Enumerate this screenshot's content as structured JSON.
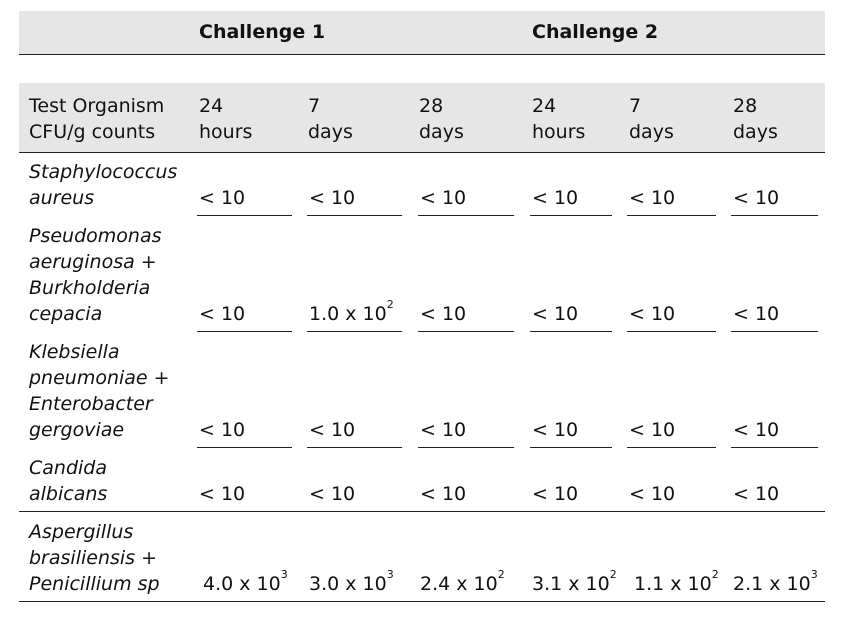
{
  "challenges": [
    "Challenge 1",
    "Challenge 2"
  ],
  "header": {
    "first_col": [
      "Test Organism",
      "CFU/g counts"
    ],
    "times": [
      [
        "24",
        "hours"
      ],
      [
        "7",
        "days"
      ],
      [
        "28",
        "days"
      ],
      [
        "24",
        "hours"
      ],
      [
        "7",
        "days"
      ],
      [
        "28",
        "days"
      ]
    ]
  },
  "rows": [
    {
      "organism": [
        "Staphylococcus",
        "aureus"
      ],
      "values": [
        [
          "< 10",
          ""
        ],
        [
          "< 10",
          ""
        ],
        [
          "< 10",
          ""
        ],
        [
          "< 10",
          ""
        ],
        [
          "< 10",
          ""
        ],
        [
          "< 10",
          ""
        ]
      ]
    },
    {
      "organism": [
        "Pseudomonas",
        "aeruginosa +",
        "Burkholderia",
        "cepacia"
      ],
      "values": [
        [
          "< 10",
          ""
        ],
        [
          "1.0 x 10",
          "2"
        ],
        [
          "< 10",
          ""
        ],
        [
          "< 10",
          ""
        ],
        [
          "< 10",
          ""
        ],
        [
          "< 10",
          ""
        ]
      ]
    },
    {
      "organism": [
        "Klebsiella",
        "pneumoniae +",
        "Enterobacter",
        "gergoviae"
      ],
      "values": [
        [
          "< 10",
          ""
        ],
        [
          "< 10",
          ""
        ],
        [
          "< 10",
          ""
        ],
        [
          "< 10",
          ""
        ],
        [
          "< 10",
          ""
        ],
        [
          "< 10",
          ""
        ]
      ]
    },
    {
      "organism": [
        "Candida",
        "albicans"
      ],
      "values": [
        [
          "< 10",
          ""
        ],
        [
          "< 10",
          ""
        ],
        [
          "< 10",
          ""
        ],
        [
          "< 10",
          ""
        ],
        [
          "< 10",
          ""
        ],
        [
          "< 10",
          ""
        ]
      ]
    },
    {
      "organism": [
        "Aspergillus",
        "brasiliensis +",
        "Penicillium sp"
      ],
      "values": [
        [
          "4.0 x 10",
          "3"
        ],
        [
          "3.0 x 10",
          "3"
        ],
        [
          "2.4 x 10",
          "2"
        ],
        [
          "3.1 x 10",
          "2"
        ],
        [
          "1.1 x 10",
          "2"
        ],
        [
          "2.1 x 10",
          "3"
        ]
      ]
    }
  ]
}
